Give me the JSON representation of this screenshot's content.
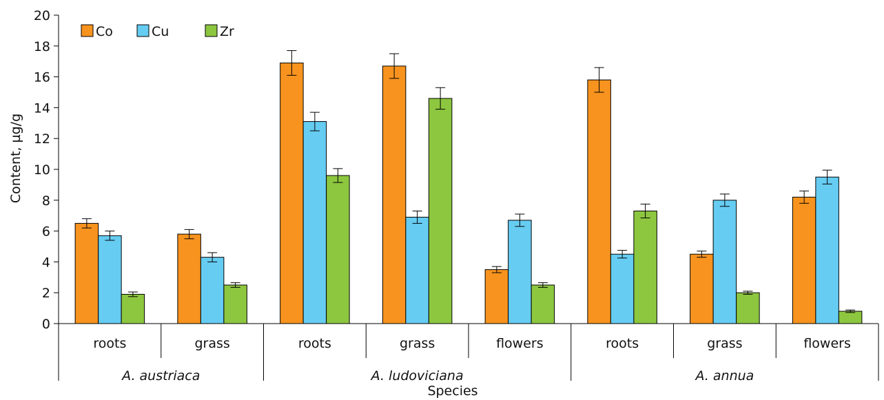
{
  "chart_data": {
    "type": "bar",
    "xlabel": "Species",
    "ylabel": "Content, µg/g",
    "ylim": [
      0,
      20
    ],
    "yticks": [
      0,
      2,
      4,
      6,
      8,
      10,
      12,
      14,
      16,
      18,
      20
    ],
    "legend_position": "top-left",
    "groups": [
      {
        "name": "A. austriaca",
        "categories": [
          "roots",
          "grass"
        ]
      },
      {
        "name": "A. ludoviciana",
        "categories": [
          "roots",
          "grass",
          "flowers"
        ]
      },
      {
        "name": "A. annua",
        "categories": [
          "roots",
          "grass",
          "flowers"
        ]
      }
    ],
    "categories": [
      "roots",
      "grass",
      "roots",
      "grass",
      "flowers",
      "roots",
      "grass",
      "flowers"
    ],
    "series": [
      {
        "name": "Co",
        "color": "#F7931E",
        "values": [
          6.5,
          5.8,
          16.9,
          16.7,
          3.5,
          15.8,
          4.5,
          8.2
        ],
        "errors": [
          0.3,
          0.3,
          0.8,
          0.8,
          0.2,
          0.8,
          0.2,
          0.4
        ]
      },
      {
        "name": "Cu",
        "color": "#66CCF2",
        "values": [
          5.7,
          4.3,
          13.1,
          6.9,
          6.7,
          4.5,
          8.0,
          9.5
        ],
        "errors": [
          0.3,
          0.3,
          0.6,
          0.4,
          0.4,
          0.25,
          0.4,
          0.45
        ]
      },
      {
        "name": "Zr",
        "color": "#8DC63F",
        "values": [
          1.9,
          2.5,
          9.6,
          14.6,
          2.5,
          7.3,
          2.0,
          0.8
        ],
        "errors": [
          0.15,
          0.15,
          0.45,
          0.7,
          0.15,
          0.45,
          0.1,
          0.08
        ]
      }
    ]
  }
}
